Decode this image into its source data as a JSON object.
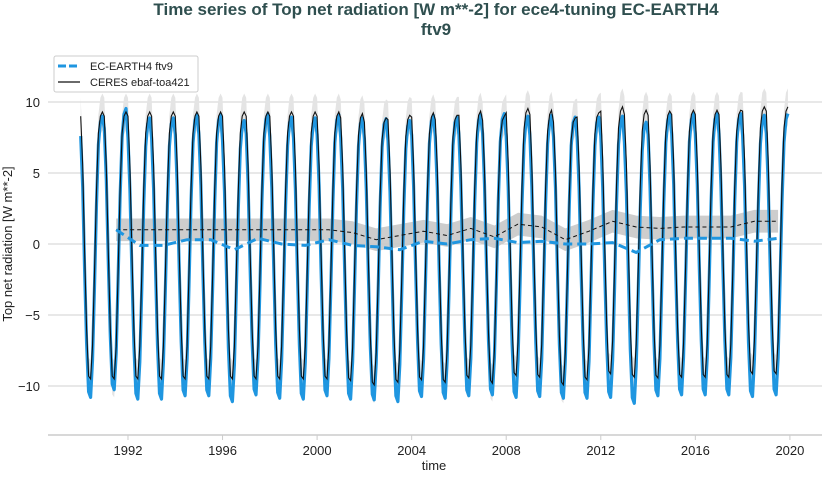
{
  "chart_data": {
    "type": "line",
    "title": "Time series of Top net radiation [W m**-2] for ece4-tuning EC-EARTH4",
    "title_line2": "ftv9",
    "xlabel": "time",
    "ylabel": "Top net radiation [W m**-2]",
    "xlim": [
      1988.7,
      2021.2
    ],
    "ylim": [
      -13.5,
      13
    ],
    "grid": "horizontal",
    "legend_position": "top-left",
    "xticks": [
      "1992",
      "1996",
      "2000",
      "2004",
      "2008",
      "2012",
      "2016",
      "2020"
    ],
    "xtick_values": [
      1992,
      1996,
      2000,
      2004,
      2008,
      2012,
      2016,
      2020
    ],
    "yticks": [
      "10",
      "5",
      "0",
      "−5",
      "−10"
    ],
    "ytick_values": [
      10,
      5,
      0,
      -5,
      -10
    ],
    "legend": [
      "EC-EARTH4 ftv9",
      "CERES ebaf-toa421"
    ],
    "colors": {
      "model": "#1f96e0",
      "obs": "#111111",
      "band": "#c8c8c8",
      "grid": "#d0d0d0"
    },
    "monthly_years": [
      1990,
      2019
    ],
    "series": [
      {
        "name": "EC-EARTH4 ftv9",
        "style": "dashed-thick",
        "monthly_climatology": [
          7.6,
          4.0,
          -1.8,
          -7.0,
          -10.4,
          -10.8,
          -8.2,
          -3.0,
          2.8,
          7.0,
          8.6,
          9.0
        ],
        "annual_mean_years": [
          1991,
          1992,
          1993,
          1994,
          1995,
          1996,
          1997,
          1998,
          1999,
          2000,
          2001,
          2002,
          2003,
          2004,
          2005,
          2006,
          2007,
          2008,
          2009,
          2010,
          2011,
          2012,
          2013,
          2014,
          2015,
          2016,
          2017,
          2018,
          2019
        ],
        "annual_mean": [
          1.0,
          -0.1,
          -0.1,
          0.3,
          0.3,
          -0.4,
          0.4,
          0.0,
          -0.1,
          0.3,
          -0.1,
          -0.2,
          -0.4,
          0.2,
          0.0,
          0.3,
          0.4,
          0.1,
          0.2,
          0.0,
          0.0,
          0.1,
          -0.6,
          0.3,
          0.4,
          0.4,
          0.4,
          0.2,
          0.4
        ]
      },
      {
        "name": "CERES ebaf-toa421",
        "style": "solid-thin",
        "monthly_climatology": [
          9.0,
          5.5,
          -0.5,
          -6.0,
          -9.3,
          -9.5,
          -7.2,
          -2.0,
          3.8,
          7.8,
          9.0,
          9.3
        ],
        "annual_mean_years": [
          1991,
          1992,
          1993,
          1994,
          1995,
          1996,
          1997,
          1998,
          1999,
          2000,
          2001,
          2002,
          2003,
          2004,
          2005,
          2006,
          2007,
          2008,
          2009,
          2010,
          2011,
          2012,
          2013,
          2014,
          2015,
          2016,
          2017,
          2018,
          2019
        ],
        "annual_mean": [
          1.0,
          1.0,
          1.0,
          1.0,
          1.0,
          1.0,
          1.0,
          1.0,
          1.0,
          1.0,
          0.8,
          0.3,
          0.6,
          0.9,
          0.6,
          1.1,
          0.5,
          1.4,
          1.2,
          0.3,
          0.9,
          1.6,
          1.2,
          1.1,
          1.2,
          1.2,
          1.2,
          1.6,
          1.6
        ],
        "annual_mean_band_halfwidth": 0.8
      }
    ]
  }
}
